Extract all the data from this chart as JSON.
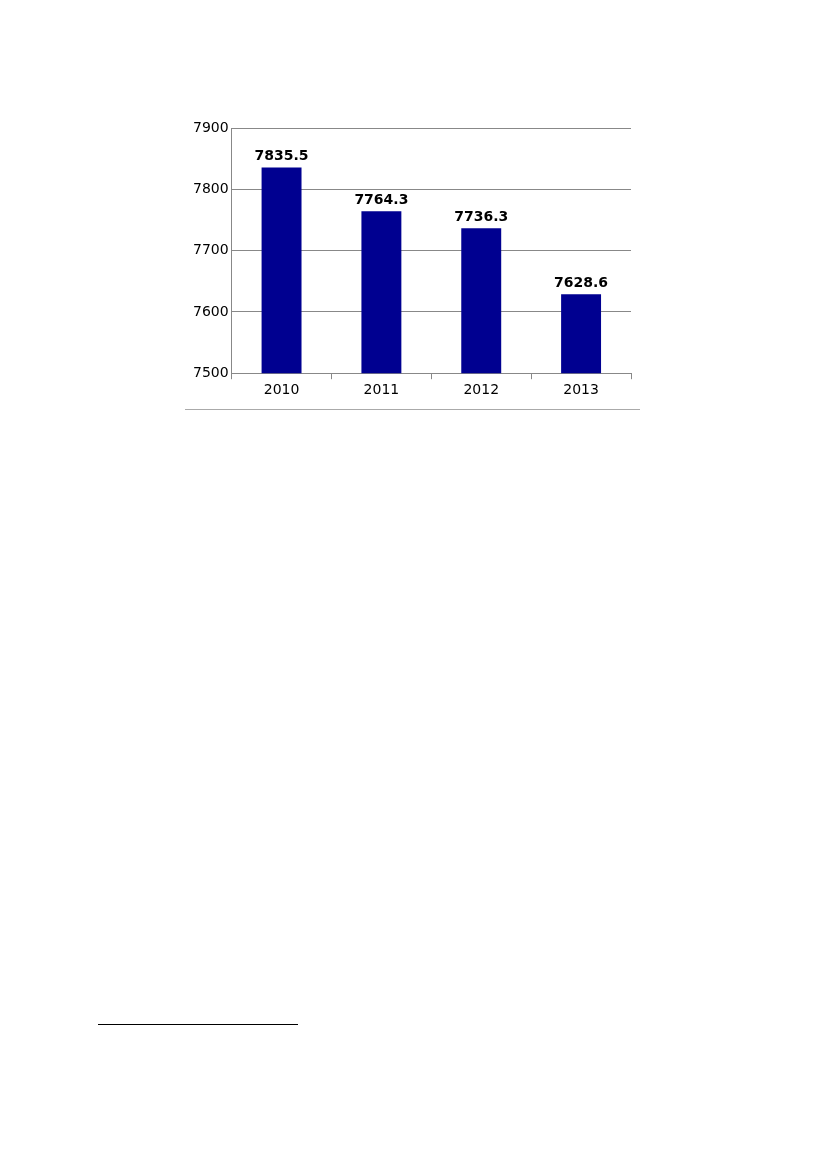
{
  "chart_data": {
    "type": "bar",
    "categories": [
      "2010",
      "2011",
      "2012",
      "2013"
    ],
    "values": [
      7835.5,
      7764.3,
      7736.3,
      7628.6
    ],
    "color": "#000090",
    "ylim": [
      7500,
      7900
    ],
    "yticks": [
      7500,
      7600,
      7700,
      7800,
      7900
    ],
    "grid": "y",
    "legend": false,
    "data_labels": true
  }
}
